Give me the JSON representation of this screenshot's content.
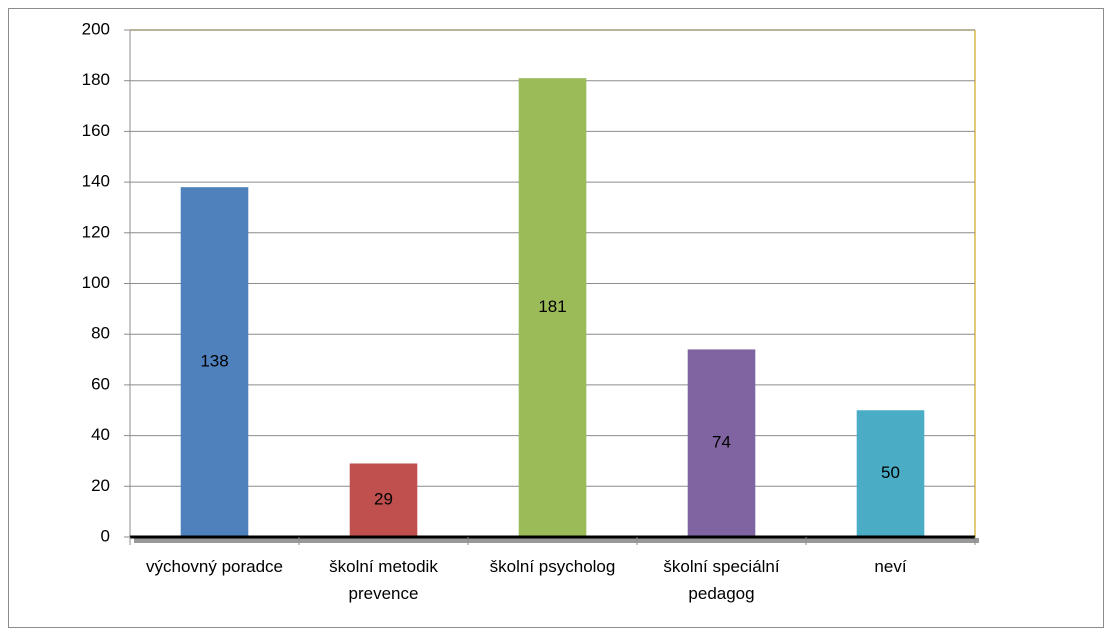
{
  "chart_data": {
    "type": "bar",
    "categories": [
      "výchovný poradce",
      "školní metodik prevence",
      "školní psycholog",
      "školní speciální pedagog",
      "neví"
    ],
    "values": [
      138,
      29,
      181,
      74,
      50
    ],
    "colors": [
      "#4f81bd",
      "#c0504d",
      "#9bbb59",
      "#8064a2",
      "#4bacc6"
    ],
    "ylim": [
      0,
      200
    ],
    "yticks": [
      0,
      20,
      40,
      60,
      80,
      100,
      120,
      140,
      160,
      180,
      200
    ],
    "grid": true
  }
}
